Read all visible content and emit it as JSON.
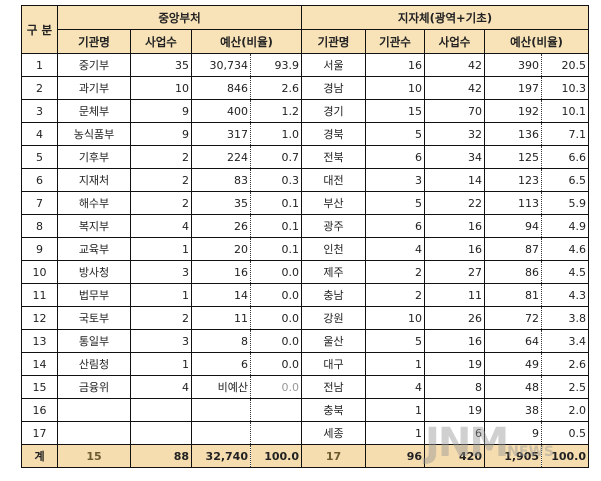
{
  "header": {
    "category": "구 분",
    "central": "중앙부처",
    "local": "지자체(광역+기초)",
    "org_name": "기관명",
    "project_count": "사업수",
    "budget_ratio": "예산(비율)",
    "org_count": "기관수"
  },
  "rows": [
    {
      "no": "1",
      "c_name": "중기부",
      "c_proj": "35",
      "c_budget": "30,734",
      "c_ratio": "93.9",
      "l_name": "서울",
      "l_orgs": "16",
      "l_proj": "42",
      "l_budget": "390",
      "l_ratio": "20.5"
    },
    {
      "no": "2",
      "c_name": "과기부",
      "c_proj": "10",
      "c_budget": "846",
      "c_ratio": "2.6",
      "l_name": "경남",
      "l_orgs": "10",
      "l_proj": "42",
      "l_budget": "197",
      "l_ratio": "10.3"
    },
    {
      "no": "3",
      "c_name": "문체부",
      "c_proj": "9",
      "c_budget": "400",
      "c_ratio": "1.2",
      "l_name": "경기",
      "l_orgs": "15",
      "l_proj": "70",
      "l_budget": "192",
      "l_ratio": "10.1"
    },
    {
      "no": "4",
      "c_name": "농식품부",
      "c_proj": "9",
      "c_budget": "317",
      "c_ratio": "1.0",
      "l_name": "경북",
      "l_orgs": "5",
      "l_proj": "32",
      "l_budget": "136",
      "l_ratio": "7.1"
    },
    {
      "no": "5",
      "c_name": "기후부",
      "c_proj": "2",
      "c_budget": "224",
      "c_ratio": "0.7",
      "l_name": "전북",
      "l_orgs": "6",
      "l_proj": "34",
      "l_budget": "125",
      "l_ratio": "6.6"
    },
    {
      "no": "6",
      "c_name": "지재처",
      "c_proj": "2",
      "c_budget": "83",
      "c_ratio": "0.3",
      "l_name": "대전",
      "l_orgs": "3",
      "l_proj": "14",
      "l_budget": "123",
      "l_ratio": "6.5"
    },
    {
      "no": "7",
      "c_name": "해수부",
      "c_proj": "2",
      "c_budget": "35",
      "c_ratio": "0.1",
      "l_name": "부산",
      "l_orgs": "5",
      "l_proj": "22",
      "l_budget": "113",
      "l_ratio": "5.9"
    },
    {
      "no": "8",
      "c_name": "복지부",
      "c_proj": "4",
      "c_budget": "26",
      "c_ratio": "0.1",
      "l_name": "광주",
      "l_orgs": "6",
      "l_proj": "16",
      "l_budget": "94",
      "l_ratio": "4.9"
    },
    {
      "no": "9",
      "c_name": "교육부",
      "c_proj": "1",
      "c_budget": "20",
      "c_ratio": "0.1",
      "l_name": "인천",
      "l_orgs": "4",
      "l_proj": "16",
      "l_budget": "87",
      "l_ratio": "4.6"
    },
    {
      "no": "10",
      "c_name": "방사청",
      "c_proj": "3",
      "c_budget": "16",
      "c_ratio": "0.0",
      "l_name": "제주",
      "l_orgs": "2",
      "l_proj": "27",
      "l_budget": "86",
      "l_ratio": "4.5"
    },
    {
      "no": "11",
      "c_name": "법무부",
      "c_proj": "1",
      "c_budget": "14",
      "c_ratio": "0.0",
      "l_name": "충남",
      "l_orgs": "2",
      "l_proj": "11",
      "l_budget": "81",
      "l_ratio": "4.3"
    },
    {
      "no": "12",
      "c_name": "국토부",
      "c_proj": "2",
      "c_budget": "11",
      "c_ratio": "0.0",
      "l_name": "강원",
      "l_orgs": "10",
      "l_proj": "26",
      "l_budget": "72",
      "l_ratio": "3.8"
    },
    {
      "no": "13",
      "c_name": "통일부",
      "c_proj": "3",
      "c_budget": "8",
      "c_ratio": "0.0",
      "l_name": "울산",
      "l_orgs": "5",
      "l_proj": "16",
      "l_budget": "64",
      "l_ratio": "3.4"
    },
    {
      "no": "14",
      "c_name": "산림청",
      "c_proj": "1",
      "c_budget": "6",
      "c_ratio": "0.0",
      "l_name": "대구",
      "l_orgs": "1",
      "l_proj": "19",
      "l_budget": "49",
      "l_ratio": "2.6"
    },
    {
      "no": "15",
      "c_name": "금융위",
      "c_proj": "4",
      "c_budget": "비예산",
      "c_ratio": "0.0",
      "l_name": "전남",
      "l_orgs": "4",
      "l_proj": "8",
      "l_budget": "48",
      "l_ratio": "2.5"
    },
    {
      "no": "16",
      "c_name": "",
      "c_proj": "",
      "c_budget": "",
      "c_ratio": "",
      "l_name": "충북",
      "l_orgs": "1",
      "l_proj": "19",
      "l_budget": "38",
      "l_ratio": "2.0"
    },
    {
      "no": "17",
      "c_name": "",
      "c_proj": "",
      "c_budget": "",
      "c_ratio": "",
      "l_name": "세종",
      "l_orgs": "1",
      "l_proj": "6",
      "l_budget": "9",
      "l_ratio": "0.5"
    }
  ],
  "total": {
    "label": "계",
    "c_orgs": "15",
    "c_proj": "88",
    "c_budget": "32,740",
    "c_ratio": "100.0",
    "l_orgs": "17",
    "l_proj": "96",
    "l_budget": "420",
    "l_budget2": "1,905",
    "l_ratio": "100.0"
  },
  "watermark": "JNM NEWS"
}
